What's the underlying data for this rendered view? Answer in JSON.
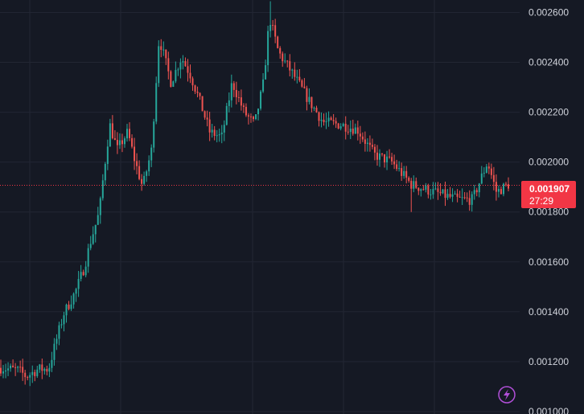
{
  "colors": {
    "background": "#151924",
    "grid": "#222633",
    "up": "#26a69a",
    "down": "#ef5350",
    "axis_text": "#d1d4dc",
    "last_price_badge": "#f23645",
    "icon": "#b14fd8"
  },
  "current_price": {
    "value": 0.001907,
    "label": "0.001907",
    "countdown": "27:29"
  },
  "icons": {
    "lightning": "lightning-icon"
  },
  "chart_data": {
    "type": "candlestick",
    "title": "",
    "xlabel": "",
    "ylabel": "",
    "ylim": [
      0.00099,
      0.00265
    ],
    "y_ticks": [
      0.001,
      0.0012,
      0.0014,
      0.0016,
      0.0018,
      0.002,
      0.0022,
      0.0024,
      0.0026
    ],
    "y_tick_labels": [
      "0.001000",
      "0.001200",
      "0.001400",
      "0.001600",
      "0.001800",
      "0.002000",
      "0.002200",
      "0.002400",
      "0.002600"
    ],
    "grid": true,
    "candle_count": 210,
    "price_path": [
      [
        0,
        0.001175
      ],
      [
        12,
        0.001165
      ],
      [
        17,
        0.00114
      ],
      [
        25,
        0.00117
      ],
      [
        32,
        0.00117
      ],
      [
        36,
        0.00126
      ],
      [
        42,
        0.00139
      ],
      [
        50,
        0.00148
      ],
      [
        56,
        0.00158
      ],
      [
        60,
        0.00168
      ],
      [
        66,
        0.0018
      ],
      [
        69,
        0.00196
      ],
      [
        73,
        0.00215
      ],
      [
        78,
        0.00205
      ],
      [
        85,
        0.00212
      ],
      [
        90,
        0.002
      ],
      [
        95,
        0.0019
      ],
      [
        101,
        0.00205
      ],
      [
        106,
        0.0025
      ],
      [
        114,
        0.00232
      ],
      [
        121,
        0.00242
      ],
      [
        127,
        0.00235
      ],
      [
        133,
        0.00225
      ],
      [
        140,
        0.00212
      ],
      [
        148,
        0.0021
      ],
      [
        155,
        0.00232
      ],
      [
        163,
        0.0022
      ],
      [
        170,
        0.00215
      ],
      [
        176,
        0.00232
      ],
      [
        180,
        0.00258
      ],
      [
        186,
        0.00244
      ],
      [
        196,
        0.00235
      ],
      [
        206,
        0.00225
      ],
      [
        216,
        0.00216
      ],
      [
        228,
        0.00215
      ],
      [
        239,
        0.00213
      ],
      [
        250,
        0.00203
      ],
      [
        262,
        0.002
      ],
      [
        275,
        0.00191
      ],
      [
        290,
        0.00188
      ],
      [
        306,
        0.00185
      ],
      [
        316,
        0.00185
      ],
      [
        326,
        0.002
      ],
      [
        332,
        0.00188
      ],
      [
        340,
        0.00191
      ]
    ]
  }
}
